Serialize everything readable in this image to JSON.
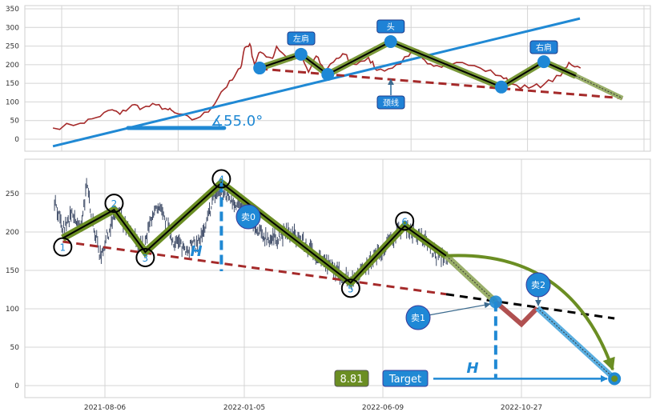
{
  "colors": {
    "price_top": "#a52a2a",
    "candles": "#3d4a66",
    "neckline": "#a52a2a",
    "trend": "#2089d4",
    "pattern": "#6b8e23",
    "pattern_light": "#9aaf6a",
    "label_box": "#1f82d6",
    "sell_down": "#b05050",
    "target_path": "#5aaee0"
  },
  "chart_data": [
    {
      "type": "line",
      "panel": "top",
      "ylim": [
        -32,
        358
      ],
      "yticks": [
        0,
        50,
        100,
        150,
        200,
        250,
        300,
        350
      ],
      "xgrid": [
        0,
        20,
        40,
        60,
        80,
        100
      ],
      "xlim": [
        -6.3,
        101
      ],
      "grid": true,
      "price": [
        [
          -1.5,
          30
        ],
        [
          3.2,
          43
        ],
        [
          5.9,
          58
        ],
        [
          8.7,
          79
        ],
        [
          10,
          67
        ],
        [
          12.1,
          92
        ],
        [
          13.9,
          84
        ],
        [
          16.2,
          92
        ],
        [
          18.3,
          79
        ],
        [
          19.4,
          71
        ],
        [
          22.4,
          52
        ],
        [
          25.2,
          73
        ],
        [
          27.4,
          127
        ],
        [
          29.3,
          159
        ],
        [
          30.7,
          191
        ],
        [
          31.4,
          245
        ],
        [
          32.3,
          256
        ],
        [
          33.1,
          202
        ],
        [
          34.1,
          234
        ],
        [
          36.2,
          217
        ],
        [
          36.9,
          249
        ],
        [
          38.9,
          213
        ],
        [
          41,
          223
        ],
        [
          42.4,
          180
        ],
        [
          43.7,
          223
        ],
        [
          45.1,
          185
        ],
        [
          47.2,
          217
        ],
        [
          48.6,
          228
        ],
        [
          49.9,
          202
        ],
        [
          52.7,
          219
        ],
        [
          54.1,
          185
        ],
        [
          56.8,
          191
        ],
        [
          59.6,
          223
        ],
        [
          60.9,
          240
        ],
        [
          62.3,
          213
        ],
        [
          64.4,
          198
        ],
        [
          67.8,
          206
        ],
        [
          71.9,
          191
        ],
        [
          75.4,
          170
        ],
        [
          77.4,
          148
        ],
        [
          80.2,
          137
        ],
        [
          82.9,
          148
        ],
        [
          85.7,
          170
        ],
        [
          87.1,
          206
        ],
        [
          89.1,
          191
        ]
      ],
      "pattern_points": [
        [
          34,
          191
        ],
        [
          41.1,
          228
        ],
        [
          45.7,
          174
        ],
        [
          56.5,
          262
        ],
        [
          75.5,
          140
        ],
        [
          82.8,
          208
        ],
        [
          88.3,
          170
        ]
      ],
      "projection": [
        [
          88.3,
          170
        ],
        [
          96.3,
          110
        ]
      ],
      "neckline": [
        [
          34,
          189
        ],
        [
          96.3,
          110
        ]
      ],
      "trendline": [
        [
          -1.5,
          -19
        ],
        [
          89,
          324
        ]
      ],
      "angle_base": [
        [
          11.4,
          30
        ],
        [
          27.9,
          30
        ]
      ],
      "angle_label": "∡55.0°",
      "labels": {
        "left_shoulder": "左肩",
        "head": "头",
        "right_shoulder": "右肩",
        "neckline": "颈线"
      }
    },
    {
      "type": "candlestick",
      "panel": "bottom",
      "ylim": [
        -15.6,
        295
      ],
      "yticks": [
        0,
        50,
        100,
        150,
        200,
        250
      ],
      "xticks": [
        "2021-08-06",
        "2022-01-05",
        "2022-06-09",
        "2022-10-27"
      ],
      "grid": true,
      "price_path": [
        [
          "2021-06-12",
          242
        ],
        [
          "2021-06-16",
          226
        ],
        [
          "2021-06-20",
          200
        ],
        [
          "2021-07-01",
          221
        ],
        [
          "2021-07-10",
          205
        ],
        [
          "2021-07-17",
          257
        ],
        [
          "2021-07-20",
          242
        ],
        [
          "2021-07-26",
          200
        ],
        [
          "2021-08-01",
          169
        ],
        [
          "2021-08-10",
          200
        ],
        [
          "2021-08-18",
          226
        ],
        [
          "2021-08-31",
          200
        ],
        [
          "2021-09-18",
          179
        ],
        [
          "2021-09-27",
          226
        ],
        [
          "2021-10-06",
          226
        ],
        [
          "2021-10-19",
          190
        ],
        [
          "2021-11-01",
          179
        ],
        [
          "2021-11-14",
          184
        ],
        [
          "2021-11-23",
          200
        ],
        [
          "2021-12-02",
          247
        ],
        [
          "2021-12-11",
          252
        ],
        [
          "2021-12-19",
          247
        ],
        [
          "2022-01-02",
          231
        ],
        [
          "2022-01-18",
          200
        ],
        [
          "2022-02-05",
          190
        ],
        [
          "2022-02-23",
          200
        ],
        [
          "2022-03-09",
          190
        ],
        [
          "2022-03-27",
          169
        ],
        [
          "2022-04-18",
          148
        ],
        [
          "2022-05-06",
          138
        ],
        [
          "2022-06-02",
          169
        ],
        [
          "2022-07-01",
          207
        ],
        [
          "2022-07-21",
          190
        ],
        [
          "2022-08-02",
          169
        ],
        [
          "2022-08-14",
          167
        ]
      ],
      "pattern_points": [
        {
          "label": "1",
          "date": "2021-06-21",
          "value": 192
        },
        {
          "label": "2",
          "date": "2021-08-16",
          "value": 229
        },
        {
          "label": "3",
          "date": "2021-09-19",
          "value": 174
        },
        {
          "label": "4",
          "date": "2021-12-11",
          "value": 264
        },
        {
          "label": "5",
          "date": "2022-05-04",
          "value": 134
        },
        {
          "label": "6",
          "date": "2022-07-01",
          "value": 208
        }
      ],
      "pattern_end": {
        "date": "2022-08-12",
        "value": 169
      },
      "sell1": {
        "label": "卖1",
        "date": "2022-10-01",
        "value": 109
      },
      "dip": {
        "date": "2022-10-27",
        "value": 80
      },
      "sell2": {
        "label": "卖2",
        "date": "2022-11-12",
        "value": 101
      },
      "target_point": {
        "date": "2023-01-29",
        "value": 9
      },
      "sell0": {
        "label": "卖0"
      },
      "neckline": [
        [
          "2021-06-21",
          187.5
        ],
        [
          "2022-08-12",
          119
        ]
      ],
      "neckline_extension": [
        [
          "2022-08-12",
          119
        ],
        [
          "2023-01-29",
          87.5
        ]
      ],
      "height_marker": {
        "label": "H",
        "date": "2021-12-11",
        "from": 264,
        "to": 149
      },
      "target_height_marker": {
        "label": "H",
        "date": "2022-10-01",
        "from": 109,
        "to": 9
      },
      "target_label": "Target",
      "target_value": "8.81"
    }
  ]
}
